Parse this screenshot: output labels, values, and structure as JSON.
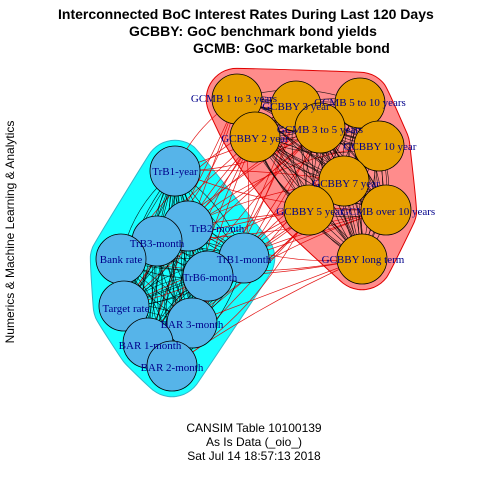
{
  "title": {
    "line1": "Interconnected BoC Interest Rates During Last 120 Days",
    "line2": "GCBBY: GoC benchmark bond yields",
    "line3": "GCMB: GoC marketable bond"
  },
  "ylabel": "Numerics & Machine Learning & Analytics",
  "caption": {
    "line1": "CANSIM Table 10100139",
    "line2": "As Is Data (_oio_)",
    "line3": "Sat Jul 14 18:57:13 2018"
  },
  "colors": {
    "group_a_node": "#56B4E9",
    "group_a_hull": "#00FFFF",
    "group_b_node": "#E69F00",
    "group_b_hull": "#FF8080",
    "cross_edge": "#E00000",
    "within_edge": "#000000",
    "label": "#00008B"
  },
  "groups": [
    {
      "id": "short-term",
      "nodes": [
        "TrB1-year",
        "TrB2-month",
        "TrB3-month",
        "Bank rate",
        "TrB1-month",
        "TrB6-month",
        "Target rate",
        "BAR 3-month",
        "BAR 1-month",
        "BAR 2-month"
      ]
    },
    {
      "id": "bonds",
      "nodes": [
        "GCMB 1 to 3 years",
        "GCBBY 3 year",
        "GCMB 5 to 10 years",
        "GCBBY 2 year",
        "GCMB 3 to 5 years",
        "GCBBY 10 year",
        "GCBBY 7 year",
        "GCBBY 5 year",
        "GCMB over 10 years",
        "GCBBY long term"
      ]
    }
  ]
}
